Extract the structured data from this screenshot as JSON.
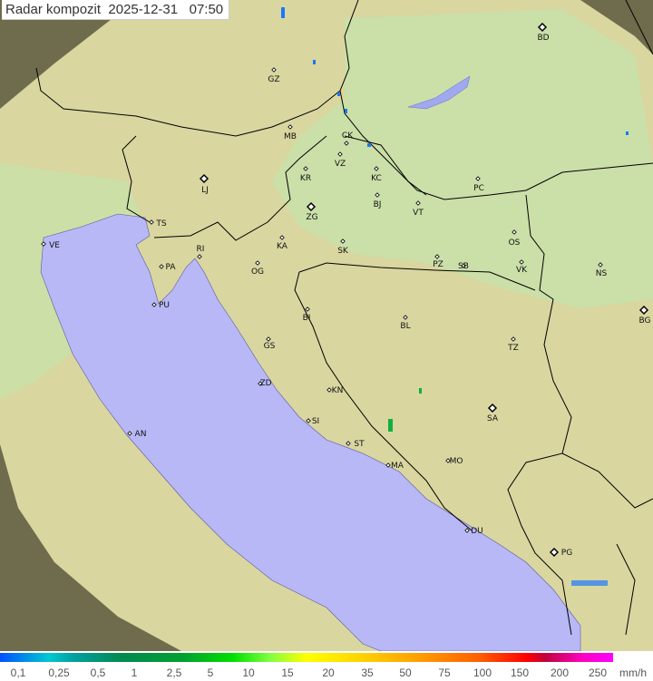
{
  "header": {
    "title": "Radar kompozit  2025-12-31   07:50"
  },
  "legend": {
    "values": [
      "0,1",
      "0,25",
      "0,5",
      "1",
      "2,5",
      "5",
      "10",
      "15",
      "20",
      "35",
      "50",
      "75",
      "100",
      "150",
      "200",
      "250"
    ],
    "unit": "mm/h"
  },
  "map": {
    "colors": {
      "outside_range": "#6e6c4c",
      "land": "#d9d6a0",
      "lowland": "#c9e0a8",
      "sea": "#b8b8f6",
      "border": "#000000",
      "rain_light": "#1a78ff",
      "rain_moderate": "#10b040"
    },
    "cities": [
      {
        "code": "GZ",
        "type": "small"
      },
      {
        "code": "BD",
        "type": "capital"
      },
      {
        "code": "MB",
        "type": "small"
      },
      {
        "code": "CK",
        "type": "small"
      },
      {
        "code": "VZ",
        "type": "small"
      },
      {
        "code": "KR",
        "type": "small"
      },
      {
        "code": "KC",
        "type": "small"
      },
      {
        "code": "LJ",
        "type": "capital"
      },
      {
        "code": "PC",
        "type": "small"
      },
      {
        "code": "BJ",
        "type": "small"
      },
      {
        "code": "ZG",
        "type": "capital"
      },
      {
        "code": "VT",
        "type": "small"
      },
      {
        "code": "TS",
        "type": "small"
      },
      {
        "code": "VE",
        "type": "small"
      },
      {
        "code": "OS",
        "type": "small"
      },
      {
        "code": "KA",
        "type": "small"
      },
      {
        "code": "SK",
        "type": "small"
      },
      {
        "code": "RI",
        "type": "small"
      },
      {
        "code": "PZ",
        "type": "small"
      },
      {
        "code": "SB",
        "type": "small"
      },
      {
        "code": "VK",
        "type": "small"
      },
      {
        "code": "NS",
        "type": "small"
      },
      {
        "code": "PA",
        "type": "small"
      },
      {
        "code": "OG",
        "type": "small"
      },
      {
        "code": "PU",
        "type": "small"
      },
      {
        "code": "BG",
        "type": "capital"
      },
      {
        "code": "BI",
        "type": "small"
      },
      {
        "code": "BL",
        "type": "small"
      },
      {
        "code": "GS",
        "type": "small"
      },
      {
        "code": "TZ",
        "type": "small"
      },
      {
        "code": "ZD",
        "type": "small"
      },
      {
        "code": "KN",
        "type": "small"
      },
      {
        "code": "SA",
        "type": "capital"
      },
      {
        "code": "SI",
        "type": "small"
      },
      {
        "code": "AN",
        "type": "small"
      },
      {
        "code": "ST",
        "type": "small"
      },
      {
        "code": "MO",
        "type": "small"
      },
      {
        "code": "MA",
        "type": "small"
      },
      {
        "code": "DU",
        "type": "small"
      },
      {
        "code": "PG",
        "type": "capital"
      }
    ]
  }
}
